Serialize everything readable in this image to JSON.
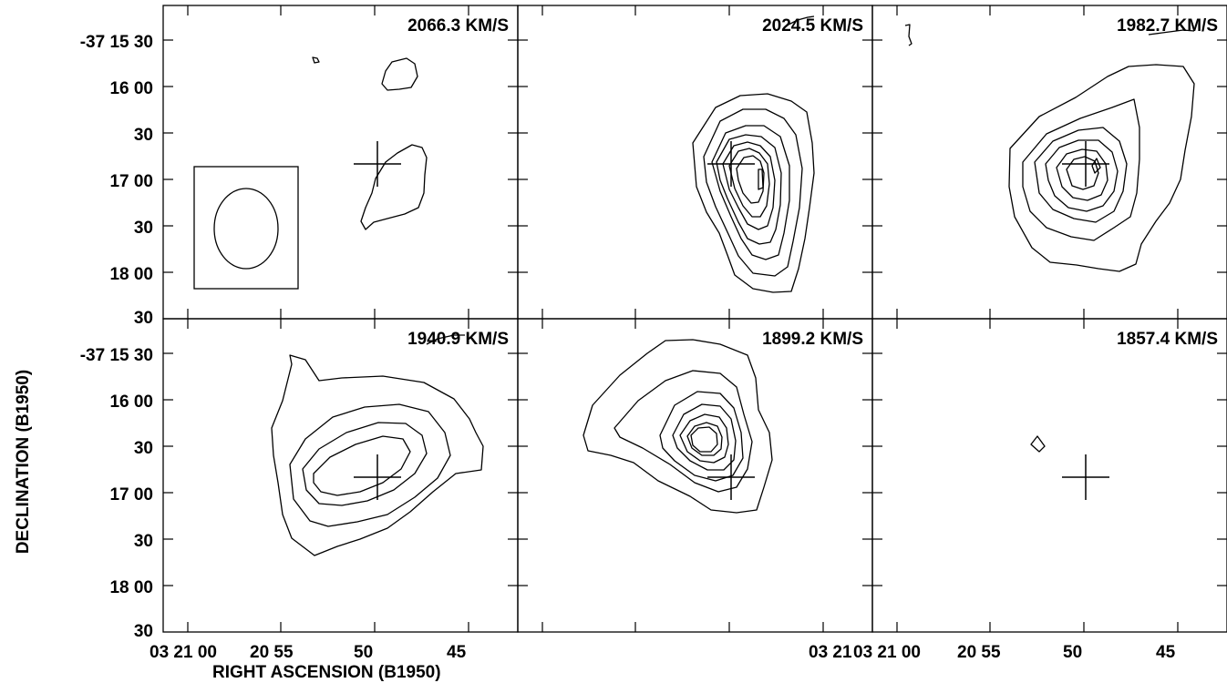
{
  "chart_data": {
    "type": "contour",
    "xlabel": "RIGHT ASCENSION (B1950)",
    "ylabel": "DECLINATION (B1950)",
    "x_tick_labels": [
      "03 21 00",
      "20 55",
      "50",
      "45"
    ],
    "y_tick_labels": [
      "-37 15 30",
      "16 00",
      "30",
      "17 00",
      "30",
      "18 00",
      "30"
    ],
    "bottom_middle_label": "03 21",
    "panels": [
      {
        "velocity": "2066.3 KM/S",
        "levels": 1,
        "cross": true,
        "beam": true
      },
      {
        "velocity": "2024.5 KM/S",
        "levels": 8,
        "cross": true,
        "beam": false
      },
      {
        "velocity": "1982.7 KM/S",
        "levels": 6,
        "cross": true,
        "beam": false
      },
      {
        "velocity": "1940.9 KM/S",
        "levels": 4,
        "cross": true,
        "beam": false
      },
      {
        "velocity": "1899.2 KM/S",
        "levels": 7,
        "cross": true,
        "beam": false
      },
      {
        "velocity": "1857.4 KM/S",
        "levels": 1,
        "cross": true,
        "beam": false
      }
    ]
  }
}
